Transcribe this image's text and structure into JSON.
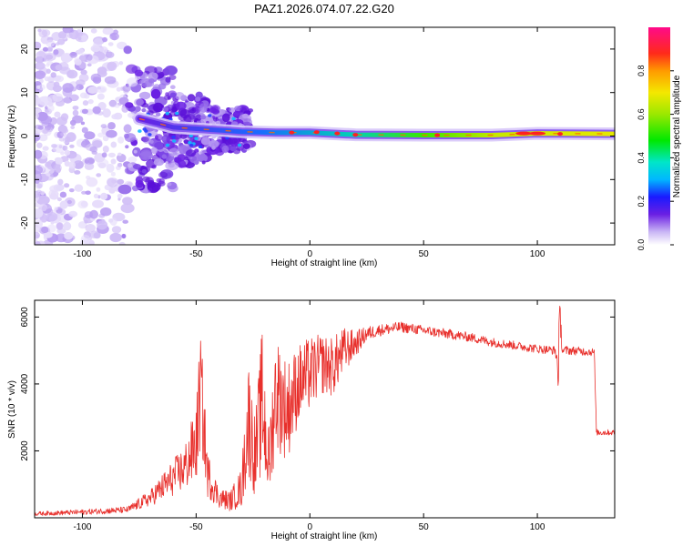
{
  "title": "PAZ1.2026.074.07.22.G20",
  "colors": {
    "snr_line": "#e8302c",
    "axis": "#000000",
    "background": "#ffffff"
  },
  "chart_data": [
    {
      "type": "heatmap",
      "name": "spectrogram",
      "title": "PAZ1.2026.074.07.22.G20",
      "xlabel": "Height of straight line (km)",
      "ylabel": "Frequency (Hz)",
      "xlim": [
        -121,
        134
      ],
      "ylim": [
        -25,
        25
      ],
      "xticks": [
        -100,
        -50,
        0,
        50,
        100
      ],
      "yticks": [
        -20,
        -10,
        0,
        10,
        20
      ],
      "colorbar": {
        "label": "Normalized spectral amplitude",
        "range": [
          0,
          1
        ],
        "ticks": [
          0.0,
          0.2,
          0.4,
          0.6,
          0.8
        ],
        "tick_labels": [
          "0.0",
          "0.2",
          "0.4",
          "0.6",
          "0.8"
        ]
      },
      "ridge": {
        "description_points": [
          {
            "x": -75,
            "freq": 4,
            "amp": 0.3
          },
          {
            "x": -60,
            "freq": 2,
            "amp": 0.3
          },
          {
            "x": -45,
            "freq": 1.5,
            "amp": 0.35
          },
          {
            "x": -30,
            "freq": 1,
            "amp": 0.45
          },
          {
            "x": -15,
            "freq": 0.8,
            "amp": 0.6
          },
          {
            "x": 0,
            "freq": 0.8,
            "amp": 0.7
          },
          {
            "x": 20,
            "freq": 0.3,
            "amp": 0.8
          },
          {
            "x": 50,
            "freq": 0.2,
            "amp": 0.75
          },
          {
            "x": 80,
            "freq": 0.2,
            "amp": 0.7
          },
          {
            "x": 100,
            "freq": 0.6,
            "amp": 0.85
          },
          {
            "x": 134,
            "freq": 0.5,
            "amp": 0.6
          }
        ]
      }
    },
    {
      "type": "line",
      "name": "snr",
      "xlabel": "Height of straight line (km)",
      "ylabel": "SNR (10 * v/v)",
      "xlim": [
        -121,
        134
      ],
      "ylim": [
        0,
        6500
      ],
      "xticks": [
        -100,
        -50,
        0,
        50,
        100
      ],
      "yticks": [
        2000,
        4000,
        6000
      ],
      "envelope": {
        "x": [
          -121,
          -100,
          -80,
          -70,
          -65,
          -55,
          -50,
          -48,
          -45,
          -40,
          -35,
          -30,
          -27,
          -24,
          -21,
          -18,
          -15,
          -10,
          -5,
          0,
          5,
          10,
          15,
          20,
          25,
          30,
          40,
          50,
          60,
          70,
          80,
          90,
          100,
          108,
          109,
          110,
          111,
          115,
          125,
          126,
          134
        ],
        "y": [
          120,
          170,
          240,
          600,
          900,
          1500,
          2200,
          3900,
          1300,
          600,
          500,
          900,
          3000,
          1800,
          3500,
          1600,
          3800,
          3200,
          4000,
          4300,
          4600,
          4500,
          5000,
          5200,
          5500,
          5600,
          5700,
          5600,
          5500,
          5400,
          5250,
          5150,
          5050,
          5000,
          4400,
          6000,
          5000,
          5000,
          4950,
          2550,
          2550
        ],
        "spread": [
          60,
          80,
          100,
          250,
          400,
          700,
          1200,
          1800,
          700,
          300,
          300,
          600,
          1800,
          1200,
          2200,
          1200,
          1800,
          1500,
          1200,
          1100,
          900,
          900,
          700,
          400,
          220,
          180,
          160,
          150,
          150,
          140,
          140,
          130,
          130,
          130,
          1000,
          500,
          150,
          130,
          120,
          100,
          80
        ]
      }
    }
  ]
}
